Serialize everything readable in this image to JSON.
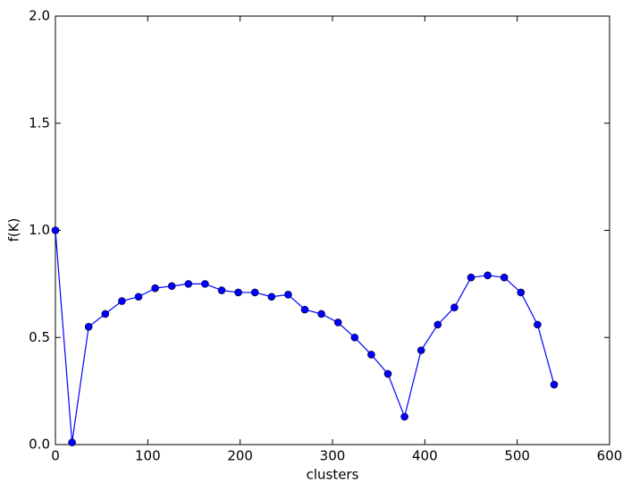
{
  "chart_data": {
    "type": "line",
    "x_label": "clusters",
    "y_label": "f(K)",
    "x": [
      0,
      18,
      36,
      54,
      72,
      90,
      108,
      126,
      144,
      162,
      180,
      198,
      216,
      234,
      252,
      270,
      288,
      306,
      324,
      342,
      360,
      378,
      396,
      414,
      432,
      450,
      468,
      486,
      504,
      522,
      540
    ],
    "series": [
      {
        "color": "#0000ff",
        "values": [
          1.0,
          0.01,
          0.55,
          0.61,
          0.67,
          0.69,
          0.73,
          0.74,
          0.75,
          0.75,
          0.72,
          0.71,
          0.71,
          0.69,
          0.7,
          0.63,
          0.61,
          0.57,
          0.5,
          0.42,
          0.33,
          0.13,
          0.44,
          0.56,
          0.64,
          0.78,
          0.79,
          0.78,
          0.71,
          0.56,
          0.28
        ]
      }
    ],
    "xlim": [
      0,
      600
    ],
    "xticks": [
      0,
      100,
      200,
      300,
      400,
      500,
      600
    ],
    "ylim": [
      0,
      2.0
    ],
    "yticks": [
      {
        "value": 0,
        "label": "0.0"
      },
      0.5,
      {
        "value": 1.0,
        "label": "1.0"
      },
      1.5,
      {
        "value": 2.0,
        "label": "2.0"
      }
    ],
    "grid": false
  }
}
